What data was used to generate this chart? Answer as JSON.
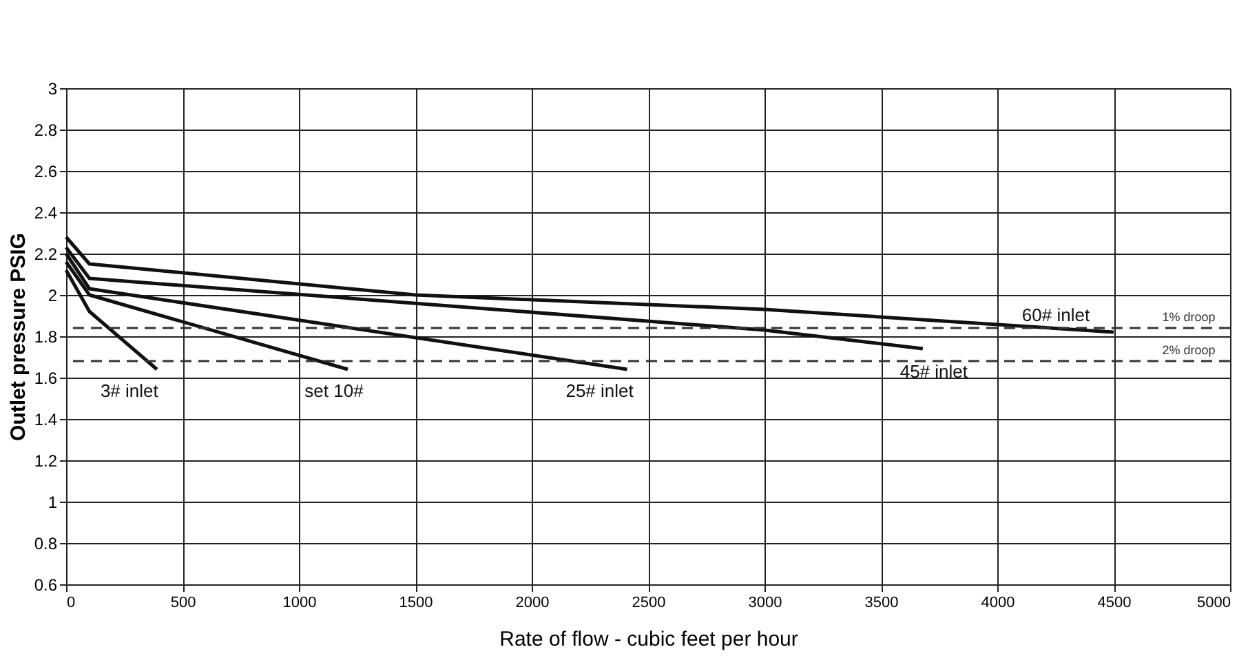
{
  "chart_data": {
    "type": "line",
    "xlabel": "Rate of flow - cubic feet per hour",
    "ylabel": "Outlet pressure PSIG",
    "xlim": [
      0,
      5000
    ],
    "xticks": [
      0,
      500,
      1000,
      1500,
      2000,
      2500,
      3000,
      3500,
      4000,
      4500,
      5000
    ],
    "ylim": [
      0.6,
      3
    ],
    "yticks": [
      0.6,
      0.8,
      1,
      1.2,
      1.4,
      1.6,
      1.8,
      2,
      2.2,
      2.4,
      2.6,
      2.8,
      3
    ],
    "grid": true,
    "marker": "none",
    "line_style": "solid",
    "series": [
      {
        "color": "#111111",
        "x": [
          0,
          100,
          390
        ],
        "values": [
          2.12,
          1.92,
          1.64
        ]
      },
      {
        "color": "#111111",
        "x": [
          0,
          100,
          1210
        ],
        "values": [
          2.16,
          2.0,
          1.64
        ]
      },
      {
        "color": "#111111",
        "x": [
          0,
          100,
          2410
        ],
        "values": [
          2.2,
          2.03,
          1.64
        ]
      },
      {
        "color": "#111111",
        "x": [
          0,
          100,
          3000,
          3680
        ],
        "values": [
          2.23,
          2.08,
          1.83,
          1.74
        ]
      },
      {
        "color": "#111111",
        "x": [
          0,
          100,
          1500,
          3000,
          4500
        ],
        "values": [
          2.28,
          2.15,
          2.0,
          1.93,
          1.82
        ]
      }
    ],
    "ref_lines": [
      {
        "axis": "y",
        "value": 1.84,
        "label": "1% droop",
        "color": "#333333",
        "line_style": "dashed"
      },
      {
        "axis": "y",
        "value": 1.68,
        "label": "2% droop",
        "color": "#333333",
        "line_style": "dashed"
      }
    ],
    "annotations": [
      {
        "text": "3# inlet",
        "x": 390,
        "y": 1.64
      },
      {
        "text": "set 10#",
        "x": 1210,
        "y": 1.64
      },
      {
        "text": "25# inlet",
        "x": 2410,
        "y": 1.64
      },
      {
        "text": "45# inlet",
        "x": 3680,
        "y": 1.74
      },
      {
        "text": "60# inlet",
        "x": 4500,
        "y": 1.82
      }
    ]
  }
}
